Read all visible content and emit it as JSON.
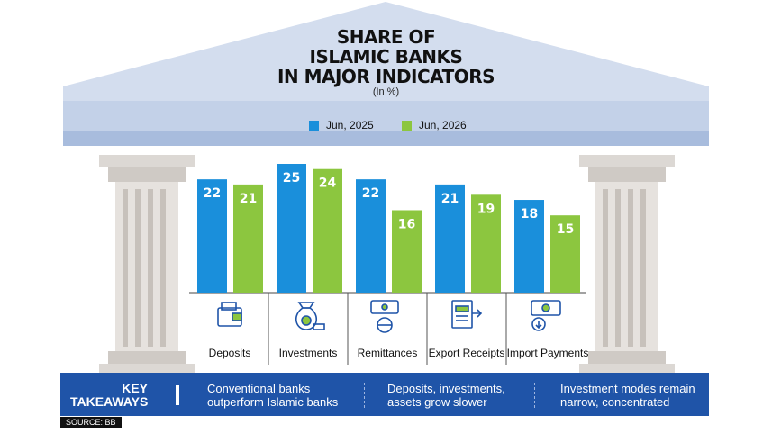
{
  "title_lines": [
    "SHARE OF",
    "ISLAMIC BANKS",
    "IN MAJOR INDICATORS"
  ],
  "subtitle": "(In %)",
  "colors": {
    "series_2025": "#1a8fdb",
    "series_2026": "#8cc63f",
    "takeaway_band": "#1f54a8",
    "temple": "#d3ddee"
  },
  "chart_data": {
    "type": "bar",
    "title": "SHARE OF ISLAMIC BANKS IN MAJOR INDICATORS",
    "subtitle": "(In %)",
    "categories": [
      "Deposits",
      "Investments",
      "Remittances",
      "Export Receipts",
      "Import Payments"
    ],
    "series": [
      {
        "name": "Jun, 2025",
        "values": [
          22,
          25,
          22,
          21,
          18
        ]
      },
      {
        "name": "Jun, 2026",
        "values": [
          21,
          24,
          16,
          19,
          15
        ]
      }
    ],
    "ylim": [
      0,
      25
    ],
    "data_labels": true,
    "legend": "top-center",
    "grid": false
  },
  "categories_icons": [
    "wallet-icon",
    "money-bag-icon",
    "remittance-icon",
    "export-document-icon",
    "import-payment-icon"
  ],
  "takeaways": {
    "heading_line1": "KEY",
    "heading_line2": "TAKEAWAYS",
    "items": [
      {
        "line1": "Conventional banks",
        "line2": "outperform Islamic banks"
      },
      {
        "line1": "Deposits, investments,",
        "line2": "assets grow slower"
      },
      {
        "line1": "Investment modes remain",
        "line2": "narrow, concentrated"
      }
    ]
  },
  "source": "SOURCE: BB"
}
